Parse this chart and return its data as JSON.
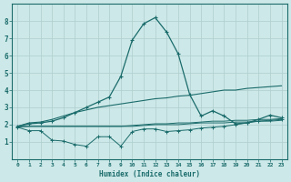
{
  "xlabel": "Humidex (Indice chaleur)",
  "background_color": "#cde8e8",
  "grid_color": "#aecece",
  "line_color": "#1a6b6b",
  "xlim": [
    -0.5,
    23.5
  ],
  "ylim": [
    0,
    9
  ],
  "xticks": [
    0,
    1,
    2,
    3,
    4,
    5,
    6,
    7,
    8,
    9,
    10,
    11,
    12,
    13,
    14,
    15,
    16,
    17,
    18,
    19,
    20,
    21,
    22,
    23
  ],
  "yticks": [
    1,
    2,
    3,
    4,
    5,
    6,
    7,
    8
  ],
  "x": [
    0,
    1,
    2,
    3,
    4,
    5,
    6,
    7,
    8,
    9,
    10,
    11,
    12,
    13,
    14,
    15,
    16,
    17,
    18,
    19,
    20,
    21,
    22,
    23
  ],
  "line_flat1": [
    1.9,
    1.9,
    1.9,
    1.9,
    1.9,
    1.9,
    1.9,
    1.9,
    1.9,
    1.9,
    1.9,
    1.95,
    2.0,
    2.0,
    2.0,
    2.05,
    2.1,
    2.1,
    2.1,
    2.15,
    2.15,
    2.2,
    2.2,
    2.25
  ],
  "line_flat2": [
    1.85,
    1.9,
    1.9,
    1.9,
    1.9,
    1.9,
    1.9,
    1.9,
    1.9,
    1.9,
    1.95,
    2.0,
    2.05,
    2.05,
    2.1,
    2.1,
    2.15,
    2.2,
    2.2,
    2.25,
    2.25,
    2.3,
    2.3,
    2.35
  ],
  "line_gentle": [
    1.9,
    2.1,
    2.15,
    2.3,
    2.5,
    2.7,
    2.85,
    3.0,
    3.1,
    3.2,
    3.3,
    3.4,
    3.5,
    3.55,
    3.65,
    3.7,
    3.8,
    3.9,
    4.0,
    4.0,
    4.1,
    4.15,
    4.2,
    4.25
  ],
  "line_jagged": [
    1.85,
    1.65,
    1.65,
    1.1,
    1.05,
    0.85,
    0.75,
    1.3,
    1.3,
    0.75,
    1.6,
    1.75,
    1.75,
    1.6,
    1.65,
    1.7,
    1.8,
    1.85,
    1.9,
    2.0,
    2.1,
    2.2,
    2.25,
    2.3
  ],
  "line_peak_x": [
    0,
    1,
    2,
    3,
    4,
    5,
    6,
    7,
    8,
    9,
    10,
    11,
    12,
    13,
    14,
    15,
    16,
    17,
    18,
    19,
    20,
    21,
    22,
    23
  ],
  "line_peak": [
    1.9,
    2.05,
    2.1,
    2.2,
    2.4,
    2.7,
    3.0,
    3.3,
    3.6,
    4.8,
    6.9,
    7.85,
    8.2,
    7.35,
    6.1,
    3.75,
    2.5,
    2.8,
    2.5,
    2.05,
    2.1,
    2.3,
    2.55,
    2.4
  ]
}
